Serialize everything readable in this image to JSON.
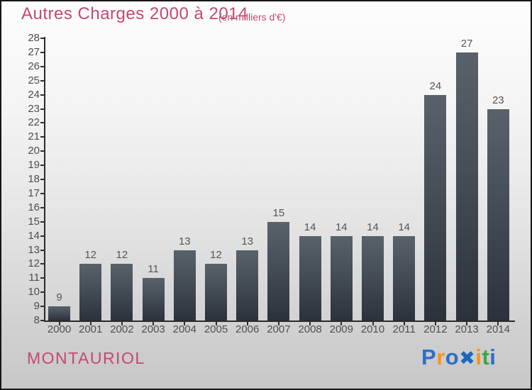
{
  "title": {
    "text": "Autres Charges 2000 à 2014",
    "subtitle": "(en milliers d'€)",
    "color": "#c5496f"
  },
  "chart_data": {
    "type": "bar",
    "title": "Autres Charges 2000 à 2014",
    "subtitle": "(en milliers d'€)",
    "categories": [
      "2000",
      "2001",
      "2002",
      "2003",
      "2004",
      "2005",
      "2006",
      "2007",
      "2008",
      "2009",
      "2010",
      "2011",
      "2012",
      "2013",
      "2014"
    ],
    "values": [
      9,
      12,
      12,
      11,
      13,
      12,
      13,
      15,
      14,
      14,
      14,
      14,
      24,
      27,
      23
    ],
    "xlabel": "",
    "ylabel": "",
    "ylim": [
      8,
      28
    ],
    "ytick_step": 1,
    "grid": false,
    "legend": "none",
    "value_labels": true,
    "bar_color_top": "#59616b",
    "bar_color_bottom": "#2c323b",
    "axis_color": "#2b2b2b",
    "tick_label_color": "#4b4e53"
  },
  "footer": {
    "company": "MONTAURIOL",
    "logo": {
      "text": "Proxiti",
      "letters": [
        {
          "ch": "P",
          "color": "#2b6fc9",
          "type": "letter"
        },
        {
          "ch": "r",
          "color": "#f7941d",
          "type": "letter"
        },
        {
          "ch": "o",
          "color": "#2b6fc9",
          "type": "letter"
        },
        {
          "ch": "✖",
          "color": "#1d67c0",
          "type": "x-mark"
        },
        {
          "ch": "i",
          "color": "#f7941d",
          "type": "letter"
        },
        {
          "ch": "t",
          "color": "#39a845",
          "type": "letter"
        },
        {
          "ch": "i",
          "color": "#2b6fc9",
          "type": "letter"
        }
      ]
    }
  }
}
